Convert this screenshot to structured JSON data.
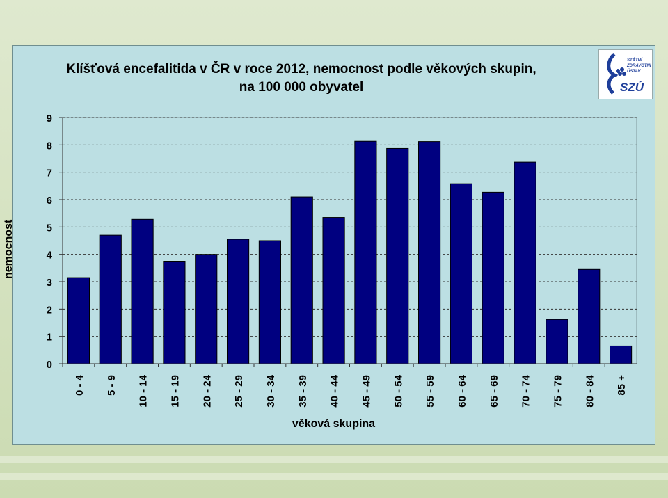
{
  "chart_data": {
    "type": "bar",
    "title": "Klíšťová encefalitida v ČR v roce 2012, nemocnost podle věkových skupin,",
    "subtitle": "na 100 000 obyvatel",
    "xlabel": "věková skupina",
    "ylabel": "nemocnost",
    "ylim": [
      0,
      9
    ],
    "yticks": [
      "0",
      "1",
      "2",
      "3",
      "4",
      "5",
      "6",
      "7",
      "8",
      "9"
    ],
    "grid": true,
    "categories": [
      "0 - 4",
      "5 - 9",
      "10 - 14",
      "15 - 19",
      "20 - 24",
      "25 - 29",
      "30 - 34",
      "35 - 39",
      "40 - 44",
      "45 - 49",
      "50 - 54",
      "55 - 59",
      "60 - 64",
      "65 - 69",
      "70 - 74",
      "75 - 79",
      "80 - 84",
      "85 +"
    ],
    "values": [
      3.15,
      4.7,
      5.28,
      3.75,
      4.0,
      4.55,
      4.5,
      6.1,
      5.35,
      8.13,
      7.87,
      8.12,
      6.58,
      6.27,
      7.37,
      1.62,
      3.45,
      0.65
    ],
    "bar_color": "#000080"
  },
  "logo": {
    "line1": "STÁTNÍ",
    "line2": "ZDRAVOTNÍ",
    "line3": "ÚSTAV",
    "abbr": "SZÚ",
    "color": "#1e3e9a"
  }
}
